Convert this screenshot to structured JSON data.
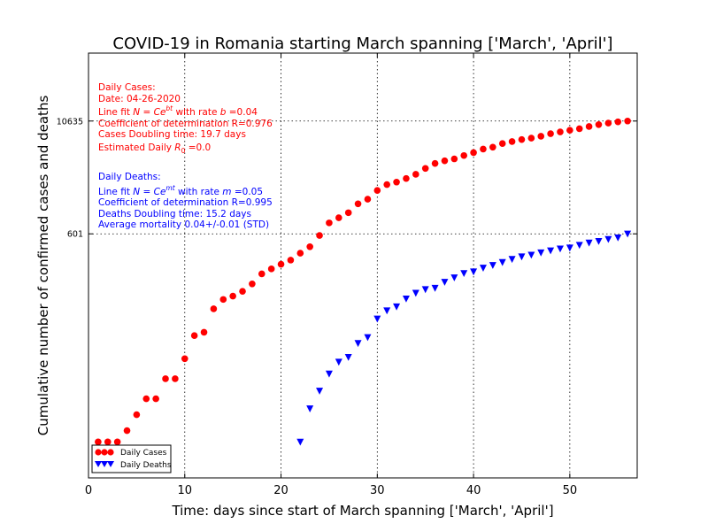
{
  "chart_data": {
    "type": "scatter",
    "title": "COVID-19 in Romania starting March spanning ['March', 'April']",
    "xlabel": "Time: days since start of March spanning ['March', 'April']",
    "ylabel": "Cumulative number of confirmed cases and deaths",
    "yscale": "log",
    "xlim": [
      0,
      57
    ],
    "ylim": [
      1.2,
      60000
    ],
    "x_ticks": [
      0,
      10,
      20,
      30,
      40,
      50
    ],
    "y_ticks": [
      601,
      10635
    ],
    "grid": true,
    "legend_position": "lower-left",
    "series": [
      {
        "name": "Daily Cases",
        "color": "#ff0000",
        "marker": "circle",
        "x": [
          1,
          2,
          3,
          4,
          5,
          6,
          7,
          8,
          9,
          10,
          11,
          12,
          13,
          14,
          15,
          16,
          17,
          18,
          19,
          20,
          21,
          22,
          23,
          24,
          25,
          26,
          27,
          28,
          29,
          30,
          31,
          32,
          33,
          34,
          35,
          36,
          37,
          38,
          39,
          40,
          41,
          42,
          43,
          44,
          45,
          46,
          47,
          48,
          49,
          50,
          51,
          52,
          53,
          54,
          55,
          56
        ],
        "y": [
          3,
          3,
          3,
          4,
          6,
          9,
          9,
          15,
          15,
          25,
          45,
          49,
          89,
          113,
          123,
          139,
          168,
          217,
          246,
          277,
          308,
          367,
          433,
          576,
          794,
          906,
          1029,
          1292,
          1452,
          1815,
          2109,
          2245,
          2460,
          2738,
          3183,
          3613,
          3864,
          4057,
          4417,
          4761,
          5202,
          5467,
          5990,
          6300,
          6633,
          6879,
          7216,
          7707,
          8067,
          8418,
          8746,
          9242,
          9710,
          10096,
          10417,
          10635
        ]
      },
      {
        "name": "Daily Deaths",
        "color": "#0000ff",
        "marker": "triangle-down",
        "x": [
          22,
          23,
          24,
          25,
          26,
          27,
          28,
          29,
          30,
          31,
          32,
          33,
          34,
          35,
          36,
          37,
          38,
          39,
          40,
          41,
          42,
          43,
          44,
          45,
          46,
          47,
          48,
          49,
          50,
          51,
          52,
          53,
          54,
          55,
          56
        ],
        "y": [
          3,
          7,
          11,
          17,
          23,
          26,
          37,
          43,
          69,
          85,
          94,
          115,
          133,
          146,
          151,
          176,
          197,
          220,
          229,
          252,
          270,
          291,
          315,
          336,
          351,
          372,
          392,
          411,
          421,
          451,
          478,
          498,
          524,
          545,
          601
        ]
      }
    ]
  },
  "annotations": {
    "cases_color": "#ff0000",
    "deaths_color": "#0000ff",
    "cases": {
      "header": "Daily Cases:",
      "date": "Date: 04-26-2020",
      "fit_prefix": "Line fit ",
      "fit_formula": "N = Ce",
      "fit_exp": "bt",
      "fit_rate_text": " with rate ",
      "fit_rate_var": "b",
      "fit_rate_value": " =0.04",
      "r2": "Coefficient of determination R=0.976",
      "doubling": "Cases Doubling time: 19.7 days",
      "r0_prefix": "Estimated Daily ",
      "r0_var": "R",
      "r0_sub": "0",
      "r0_value": " =0.0"
    },
    "deaths": {
      "header": "Daily Deaths:",
      "fit_prefix": "Line fit ",
      "fit_formula": "N = Ce",
      "fit_exp": "mt",
      "fit_rate_text": " with rate ",
      "fit_rate_var": "m",
      "fit_rate_value": " =0.05",
      "r2": "Coefficient of determination R=0.995",
      "doubling": "Deaths Doubling time: 15.2 days",
      "mortality": "Average mortality 0.04+/-0.01 (STD)"
    }
  }
}
